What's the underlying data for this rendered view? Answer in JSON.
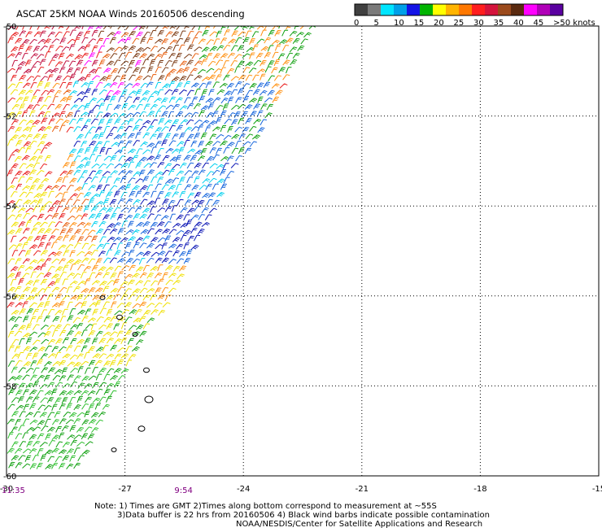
{
  "title": "ASCAT 25KM NOAA Winds 20160506 descending",
  "colorbar": {
    "colors": [
      "#404040",
      "#7a7a7a",
      "#00e5ff",
      "#00a0e8",
      "#1414e6",
      "#00b400",
      "#ffff00",
      "#ffb400",
      "#ff7800",
      "#ff1e1e",
      "#d4143c",
      "#9b4a1c",
      "#5a2a10",
      "#ff00ff",
      "#b000b8",
      "#5a00a0"
    ],
    "labels": [
      "0",
      "5",
      "10",
      "15",
      "20",
      "25",
      "30",
      "35",
      "40",
      "45",
      ">50 knots"
    ]
  },
  "map": {
    "lon_range": [
      -30,
      -15
    ],
    "lat_range": [
      -60,
      -50
    ],
    "lon_ticks": [
      "-30",
      "-27",
      "-24",
      "-21",
      "-18",
      "-15"
    ],
    "lat_ticks": [
      "-50",
      "-52",
      "-54",
      "-56",
      "-58",
      "-60"
    ],
    "grid_lons": [
      -27,
      -24,
      -21,
      -18
    ],
    "grid_lats": [
      -52,
      -54,
      -56,
      -58
    ]
  },
  "times": [
    {
      "label": "11:35",
      "lon": -30
    },
    {
      "label": "9:54",
      "lon": -25.5
    }
  ],
  "notes": [
    "Note: 1) Times are GMT 2)Times along bottom correspond to measurement at ~55S",
    "3)Data buffer is 22 hrs from 20160506 4) Black wind barbs indicate possible contamination",
    "NOAA/NESDIS/Center for Satellite Applications and Research"
  ],
  "colors": {
    "time_label": "#800080",
    "grid": "#000000"
  }
}
